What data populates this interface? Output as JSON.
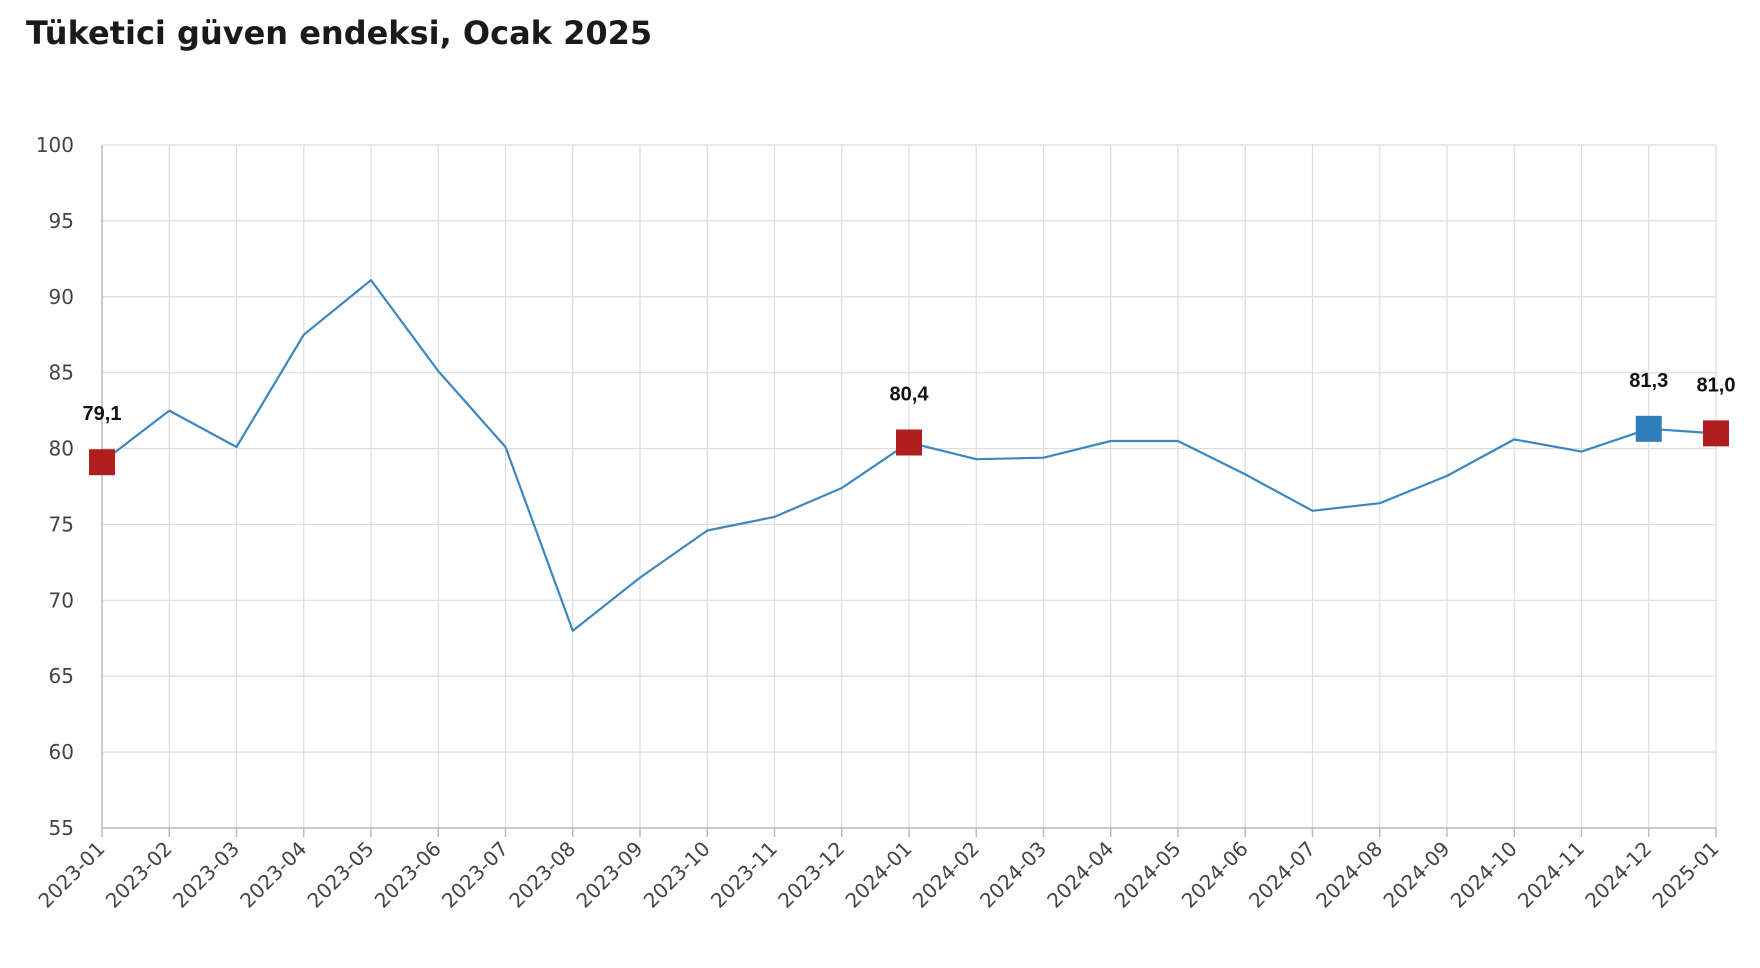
{
  "chart_data": {
    "type": "line",
    "title": "Tüketici güven endeksi, Ocak 2025",
    "xlabel": "",
    "ylabel": "",
    "ylim": [
      55,
      100
    ],
    "yticks": [
      55,
      60,
      65,
      70,
      75,
      80,
      85,
      90,
      95,
      100
    ],
    "grid": true,
    "legend": "none",
    "categories": [
      "2023-01",
      "2023-02",
      "2023-03",
      "2023-04",
      "2023-05",
      "2023-06",
      "2023-07",
      "2023-08",
      "2023-09",
      "2023-10",
      "2023-11",
      "2023-12",
      "2024-01",
      "2024-02",
      "2024-03",
      "2024-04",
      "2024-05",
      "2024-06",
      "2024-07",
      "2024-08",
      "2024-09",
      "2024-10",
      "2024-11",
      "2024-12",
      "2025-01"
    ],
    "series": [
      {
        "values": [
          79.1,
          82.5,
          80.1,
          87.5,
          91.1,
          85.1,
          80.1,
          68.0,
          71.5,
          74.6,
          75.5,
          77.4,
          80.4,
          79.3,
          79.4,
          80.5,
          80.5,
          78.3,
          75.9,
          76.4,
          78.2,
          80.6,
          79.8,
          81.3,
          81.0
        ],
        "color": "#3c87c2"
      }
    ],
    "highlights": [
      {
        "category": "2023-01",
        "label": "79,1",
        "color": "#b01e1e"
      },
      {
        "category": "2024-01",
        "label": "80,4",
        "color": "#b01e1e"
      },
      {
        "category": "2024-12",
        "label": "81,3",
        "color": "#2f7dbb"
      },
      {
        "category": "2025-01",
        "label": "81,0",
        "color": "#b01e1e"
      }
    ],
    "colors": {
      "line": "#3c87c2",
      "grid": "#dddddd",
      "axis": "#bbbbbb"
    }
  }
}
